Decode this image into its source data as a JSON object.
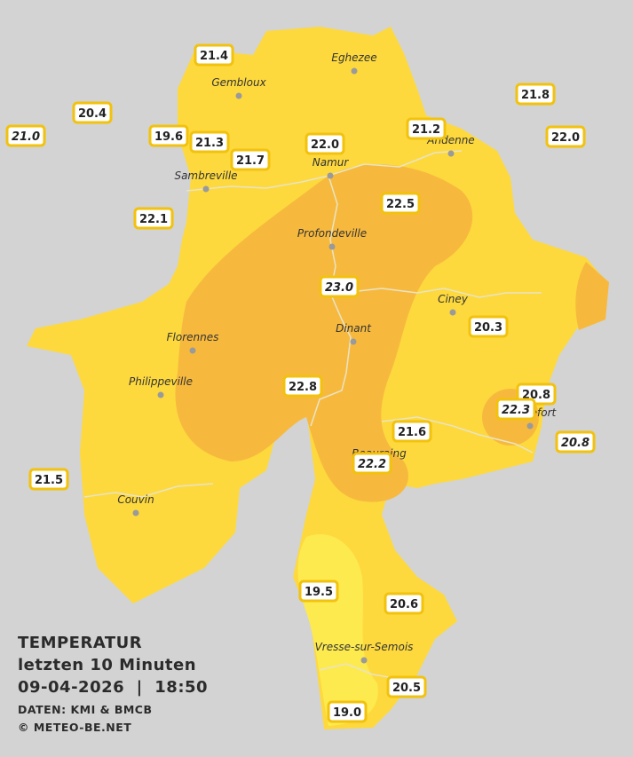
{
  "title": "TEMPERATUR",
  "subtitle": "letzten 10 Minuten",
  "timestamp": "09-04-2026  |  18:50",
  "credits": [
    "DATEN: KMI & BMCB",
    "© METEO-BE.NET"
  ],
  "cities": [
    {
      "label": "Eghezee"
    },
    {
      "label": "Gembloux"
    },
    {
      "label": "Andenne"
    },
    {
      "label": "Namur"
    },
    {
      "label": "Sambreville"
    },
    {
      "label": "Profondeville"
    },
    {
      "label": "Ciney"
    },
    {
      "label": "Dinant"
    },
    {
      "label": "Florennes"
    },
    {
      "label": "Philippeville"
    },
    {
      "label": "Beauraing"
    },
    {
      "label": "Rochefort"
    },
    {
      "label": "Couvin"
    },
    {
      "label": "Vresse-sur-Semois"
    }
  ],
  "stations": [
    {
      "label": "21.4"
    },
    {
      "label": "20.4"
    },
    {
      "label": "21.0"
    },
    {
      "label": "19.6"
    },
    {
      "label": "21.3"
    },
    {
      "label": "21.7"
    },
    {
      "label": "22.0"
    },
    {
      "label": "21.2"
    },
    {
      "label": "21.8"
    },
    {
      "label": "22.0"
    },
    {
      "label": "22.1"
    },
    {
      "label": "22.5"
    },
    {
      "label": "23.0"
    },
    {
      "label": "20.3"
    },
    {
      "label": "22.8"
    },
    {
      "label": "20.8"
    },
    {
      "label": "22.3"
    },
    {
      "label": "20.8"
    },
    {
      "label": "21.6"
    },
    {
      "label": "22.2"
    },
    {
      "label": "21.5"
    },
    {
      "label": "19.5"
    },
    {
      "label": "20.6"
    },
    {
      "label": "20.5"
    },
    {
      "label": "19.0"
    }
  ]
}
